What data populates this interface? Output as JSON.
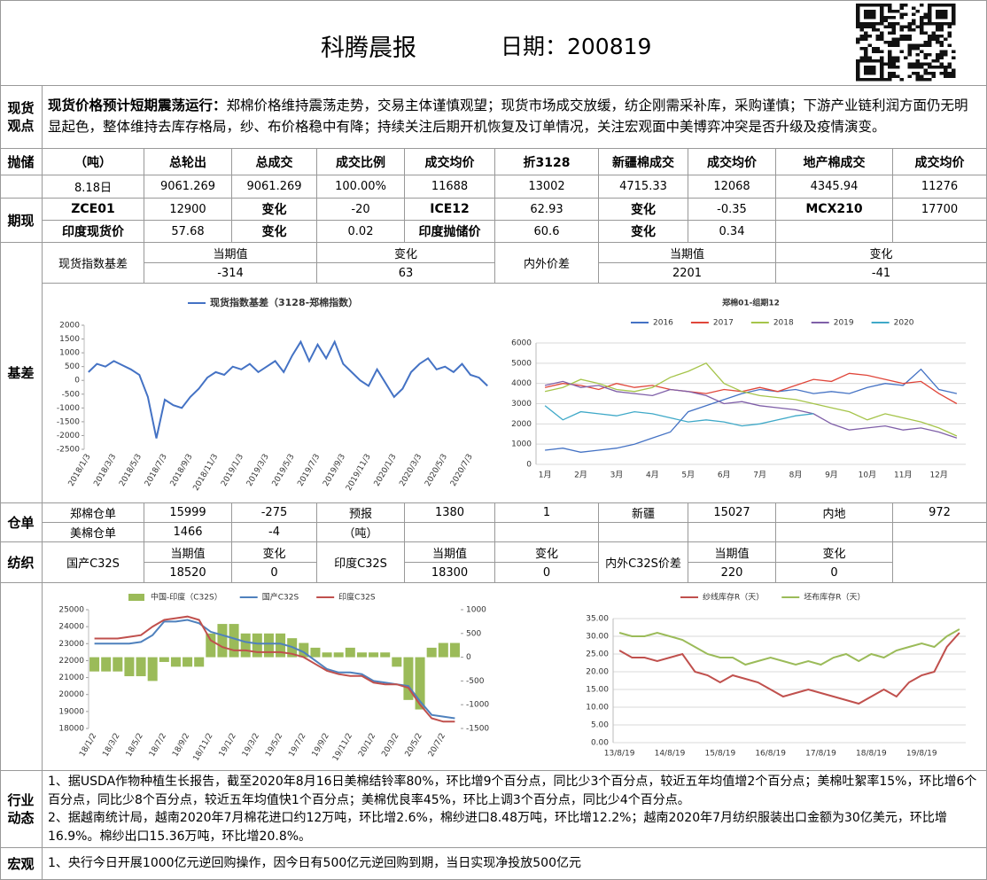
{
  "header": {
    "title": "科腾晨报",
    "date": "日期：200819"
  },
  "views": {
    "label": "现货观点",
    "headline": "现货价格预计短期震荡运行：",
    "text": "郑棉价格维持震荡走势，交易主体谨慎观望；现货市场成交放缓，纺企刚需采补库，采购谨慎；下游产业链利润方面仍无明显起色，整体维持去库存格局，纱、布价格稳中有降；持续关注后期开机恢复及订单情况，关注宏观面中美博弈冲突是否升级及疫情演变。"
  },
  "reserve": {
    "label": "抛储",
    "header": [
      "（吨）",
      "总轮出",
      "总成交",
      "成交比例",
      "成交均价",
      "折3128",
      "新疆棉成交",
      "成交均价",
      "地产棉成交",
      "成交均价"
    ],
    "row": [
      "8.18日",
      "9061.269",
      "9061.269",
      "100.00%",
      "11688",
      "13002",
      "4715.33",
      "12068",
      "4345.94",
      "11276"
    ]
  },
  "futures": {
    "label": "期现",
    "rows": [
      [
        "ZCE01",
        "12900",
        "变化",
        "-20",
        "ICE12",
        "62.93",
        "变化",
        "-0.35",
        "MCX210",
        "17700"
      ],
      [
        "印度现货价",
        "57.68",
        "变化",
        "0.02",
        "印度抛储价",
        "60.6",
        "变化",
        "0.34"
      ]
    ]
  },
  "basis": {
    "label": "基差",
    "spot_name": "现货指数基差",
    "spot_current_label": "当期值",
    "spot_current": "-314",
    "spot_change_label": "变化",
    "spot_change": "63",
    "spread_name": "内外价差",
    "spread_current_label": "当期值",
    "spread_current": "2201",
    "spread_change_label": "变化",
    "spread_change": "-41"
  },
  "warehouse": {
    "label": "仓单",
    "rows": [
      [
        "郑棉仓单",
        "15999",
        "-275",
        "预报",
        "1380",
        "1",
        "新疆",
        "15027",
        "内地",
        "972"
      ],
      [
        "美棉仓单",
        "1466",
        "-4",
        "（吨）"
      ]
    ]
  },
  "textile": {
    "label": "纺织",
    "items": [
      {
        "name": "国产C32S",
        "current_label": "当期值",
        "current": "18520",
        "change_label": "变化",
        "change": "0"
      },
      {
        "name": "印度C32S",
        "current_label": "当期值",
        "current": "18300",
        "change_label": "变化",
        "change": "0"
      },
      {
        "name": "内外C32S价差",
        "current_label": "当期值",
        "current": "220",
        "change_label": "变化",
        "change": "0"
      }
    ]
  },
  "industry": {
    "label": "行业动态",
    "items": [
      "1、据USDA作物种植生长报告，截至2020年8月16日美棉结铃率80%，环比增9个百分点，同比少3个百分点，较近五年均值增2个百分点；美棉吐絮率15%，环比增6个百分点，同比少8个百分点，较近五年均值快1个百分点；美棉优良率45%，环比上调3个百分点，同比少4个百分点。",
      "2、据越南统计局，越南2020年7月棉花进口约12万吨，环比增2.6%，棉纱进口8.48万吨，环比增12.2%；越南2020年7月纺织服装出口金额为30亿美元，环比增16.9%。棉纱出口15.36万吨，环比增20.8%。"
    ]
  },
  "macro": {
    "label": "宏观",
    "text": "1、央行今日开展1000亿元逆回购操作，因今日有500亿元逆回购到期，当日实现净投放500亿元"
  },
  "chart_data": [
    {
      "type": "line",
      "grid": false,
      "categories": [
        "2018/1/3",
        null,
        null,
        "2018/3/3",
        null,
        null,
        "2018/5/3",
        null,
        null,
        "2018/7/3",
        null,
        null,
        "2018/9/3",
        null,
        null,
        "2018/11/3",
        null,
        null,
        "2019/1/3",
        null,
        null,
        "2019/3/3",
        null,
        null,
        "2019/5/3",
        null,
        null,
        "2019/7/3",
        null,
        null,
        "2019/9/3",
        null,
        null,
        "2019/11/3",
        null,
        null,
        "2020/1/3",
        null,
        null,
        "2020/3/3",
        null,
        null,
        "2020/5/3",
        null,
        null,
        "2020/7/3",
        null,
        null
      ],
      "series": [
        {
          "name": "现货指数基差（3128-郑棉指数）",
          "color": "#4472c4",
          "values": [
            300,
            600,
            500,
            700,
            550,
            400,
            200,
            -600,
            -2100,
            -700,
            -900,
            -1000,
            -600,
            -300,
            100,
            300,
            200,
            500,
            400,
            600,
            300,
            500,
            700,
            300,
            900,
            1400,
            700,
            1300,
            800,
            1400,
            600,
            300,
            0,
            -200,
            400,
            -100,
            -600,
            -300,
            300,
            600,
            800,
            400,
            500,
            300,
            600,
            200,
            100,
            -200
          ]
        }
      ],
      "ylim": [
        -2500,
        2000
      ],
      "yticks": [
        -2500,
        -2000,
        -1500,
        -1000,
        -500,
        0,
        500,
        1000,
        1500,
        2000
      ]
    },
    {
      "type": "line",
      "grid": true,
      "title": "郑棉01-组期12",
      "categories": [
        "1月",
        null,
        "2月",
        null,
        "3月",
        null,
        "4月",
        null,
        "5月",
        null,
        "6月",
        null,
        "7月",
        null,
        "8月",
        null,
        "9月",
        null,
        "10月",
        null,
        "11月",
        null,
        "12月",
        null
      ],
      "series": [
        {
          "name": "2016",
          "color": "#4472c4",
          "values": [
            700,
            800,
            600,
            700,
            800,
            1000,
            1300,
            1600,
            2600,
            2900,
            3200,
            3500,
            3700,
            3600,
            3700,
            3500,
            3600,
            3500,
            3800,
            4000,
            3900,
            4700,
            3700,
            3500
          ]
        },
        {
          "name": "2017",
          "color": "#e0463a",
          "values": [
            3800,
            4000,
            3900,
            3700,
            4000,
            3800,
            3900,
            3700,
            3600,
            3500,
            3700,
            3600,
            3800,
            3600,
            3900,
            4200,
            4100,
            4500,
            4400,
            4200,
            4000,
            4100,
            3500,
            3000
          ]
        },
        {
          "name": "2018",
          "color": "#a5c44a",
          "values": [
            3600,
            3800,
            4200,
            4000,
            3700,
            3600,
            3800,
            4300,
            4600,
            5000,
            4000,
            3600,
            3400,
            3300,
            3200,
            3000,
            2800,
            2600,
            2200,
            2500,
            2300,
            2100,
            1800,
            1400
          ]
        },
        {
          "name": "2019",
          "color": "#7f5fa8",
          "values": [
            3900,
            4100,
            3800,
            3900,
            3600,
            3500,
            3400,
            3700,
            3600,
            3400,
            3000,
            3100,
            2900,
            2800,
            2700,
            2500,
            2000,
            1700,
            1800,
            1900,
            1700,
            1800,
            1600,
            1300
          ]
        },
        {
          "name": "2020",
          "color": "#3fa9c8",
          "values": [
            2900,
            2200,
            2600,
            2500,
            2400,
            2600,
            2500,
            2300,
            2100,
            2200,
            2100,
            1900,
            2000,
            2200,
            2400,
            2500,
            null,
            null,
            null,
            null,
            null,
            null,
            null,
            null
          ]
        }
      ],
      "ylim": [
        0,
        6000
      ],
      "yticks": [
        0,
        1000,
        2000,
        3000,
        4000,
        5000,
        6000
      ]
    },
    {
      "type": "combo",
      "grid": false,
      "categories": [
        "18/1/2",
        null,
        "18/3/2",
        null,
        "18/5/2",
        null,
        "18/7/2",
        null,
        "18/9/2",
        null,
        "18/11/2",
        null,
        "19/1/2",
        null,
        "19/3/2",
        null,
        "19/5/2",
        null,
        "19/7/2",
        null,
        "19/9/2",
        null,
        "19/11/2",
        null,
        "20/1/2",
        null,
        "20/3/2",
        null,
        "20/5/2",
        null,
        "20/7/2",
        null
      ],
      "series": [
        {
          "name": "中国-印度（C32S）",
          "type": "bar",
          "axis": "y2",
          "color": "#9bbb59",
          "values": [
            -300,
            -300,
            -300,
            -400,
            -400,
            -500,
            -100,
            -200,
            -200,
            -200,
            500,
            700,
            700,
            500,
            500,
            500,
            500,
            400,
            300,
            200,
            100,
            100,
            200,
            100,
            100,
            100,
            -200,
            -900,
            -1100,
            200,
            300,
            300
          ]
        },
        {
          "name": "国产C32S",
          "type": "line",
          "color": "#4f81bd",
          "values": [
            23000,
            23000,
            23000,
            23000,
            23100,
            23500,
            24300,
            24300,
            24400,
            24200,
            23700,
            23500,
            23300,
            23100,
            23000,
            23000,
            23000,
            22800,
            22500,
            22000,
            21500,
            21300,
            21300,
            21200,
            20800,
            20700,
            20600,
            20500,
            19600,
            18800,
            18700,
            18600
          ]
        },
        {
          "name": "印度C32S",
          "type": "line",
          "color": "#c0504d",
          "values": [
            23300,
            23300,
            23300,
            23400,
            23500,
            24000,
            24400,
            24500,
            24600,
            24400,
            23200,
            22800,
            22600,
            22600,
            22500,
            22500,
            22500,
            22400,
            22200,
            21800,
            21400,
            21200,
            21100,
            21100,
            20700,
            20600,
            20600,
            20400,
            19400,
            18600,
            18400,
            18400
          ]
        }
      ],
      "ylim": [
        18000,
        25000
      ],
      "yticks": [
        18000,
        19000,
        20000,
        21000,
        22000,
        23000,
        24000,
        25000
      ],
      "y2lim": [
        -1500,
        1000
      ],
      "y2ticks": [
        -1500,
        -1000,
        -500,
        0,
        500,
        1000
      ]
    },
    {
      "type": "line",
      "grid": true,
      "categories": [
        "13/8/19",
        null,
        null,
        null,
        "14/8/19",
        null,
        null,
        null,
        "15/8/19",
        null,
        null,
        null,
        "16/8/19",
        null,
        null,
        null,
        "17/8/19",
        null,
        null,
        null,
        "18/8/19",
        null,
        null,
        null,
        "19/8/19",
        null,
        null,
        null
      ],
      "series": [
        {
          "name": "纱线库存R（天）",
          "color": "#c0504d",
          "values": [
            26,
            24,
            24,
            23,
            24,
            25,
            20,
            19,
            17,
            19,
            18,
            17,
            15,
            13,
            14,
            15,
            14,
            13,
            12,
            11,
            13,
            15,
            13,
            17,
            19,
            20,
            27,
            31
          ]
        },
        {
          "name": "坯布库存R（天）",
          "color": "#9bbb59",
          "values": [
            31,
            30,
            30,
            31,
            30,
            29,
            27,
            25,
            24,
            24,
            22,
            23,
            24,
            23,
            22,
            23,
            22,
            24,
            25,
            23,
            25,
            24,
            26,
            27,
            28,
            27,
            30,
            32
          ]
        }
      ],
      "ylim": [
        0,
        35
      ],
      "yticks": [
        {
          "value": 0,
          "label": "0.00"
        },
        {
          "value": 5,
          "label": "5.00"
        },
        {
          "value": 10,
          "label": "10.00"
        },
        {
          "value": 15,
          "label": "15.00"
        },
        {
          "value": 20,
          "label": "20.00"
        },
        {
          "value": 25,
          "label": "25.00"
        },
        {
          "value": 30,
          "label": "30.00"
        },
        {
          "value": 35,
          "label": "35.00"
        }
      ]
    }
  ]
}
